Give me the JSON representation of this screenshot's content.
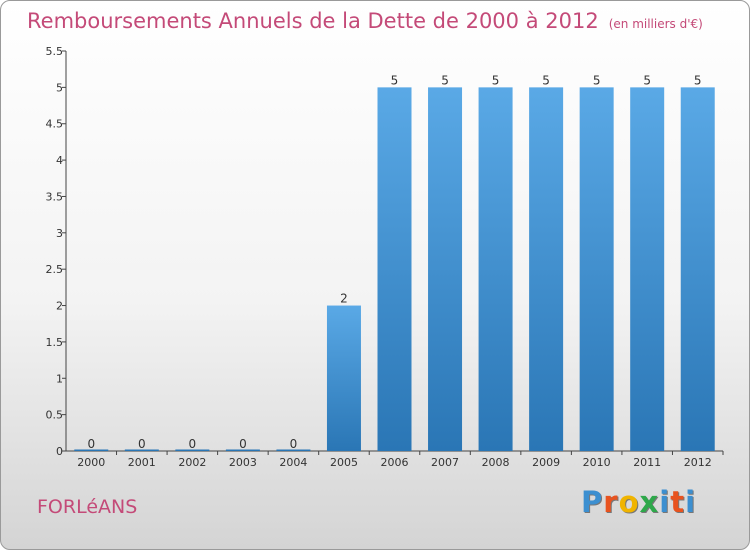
{
  "header": {
    "title": "Remboursements Annuels de la Dette de 2000 à 2012",
    "subtitle": "(en milliers d'€)"
  },
  "footer": {
    "city": "FORLéANS",
    "brand_letters": [
      "P",
      "r",
      "o",
      "x",
      "i",
      "t",
      "i"
    ],
    "brand_colors": [
      "#3c8fd0",
      "#e8531f",
      "#f0b400",
      "#2ea84a",
      "#3c8fd0",
      "#e8531f",
      "#3c8fd0"
    ]
  },
  "chart_data": {
    "type": "bar",
    "title": "Remboursements Annuels de la Dette de 2000 à 2012",
    "subtitle": "(en milliers d'€)",
    "categories": [
      "2000",
      "2001",
      "2002",
      "2003",
      "2004",
      "2005",
      "2006",
      "2007",
      "2008",
      "2009",
      "2010",
      "2011",
      "2012"
    ],
    "values": [
      0,
      0,
      0,
      0,
      0,
      2,
      5,
      5,
      5,
      5,
      5,
      5,
      5
    ],
    "data_labels": [
      "0",
      "0",
      "0",
      "0",
      "0",
      "2",
      "5",
      "5",
      "5",
      "5",
      "5",
      "5",
      "5"
    ],
    "ylim": [
      0,
      5.5
    ],
    "yticks": [
      0,
      0.5,
      1,
      1.5,
      2,
      2.5,
      3,
      3.5,
      4,
      4.5,
      5,
      5.5
    ],
    "ytick_labels": [
      "0",
      "0.5",
      "1",
      "1.5",
      "2",
      "2.5",
      "3",
      "3.5",
      "4",
      "4.5",
      "5",
      "5.5"
    ],
    "grid": false,
    "bar_color_light": "#5aa9e6",
    "bar_color_dark": "#2a76b5"
  }
}
